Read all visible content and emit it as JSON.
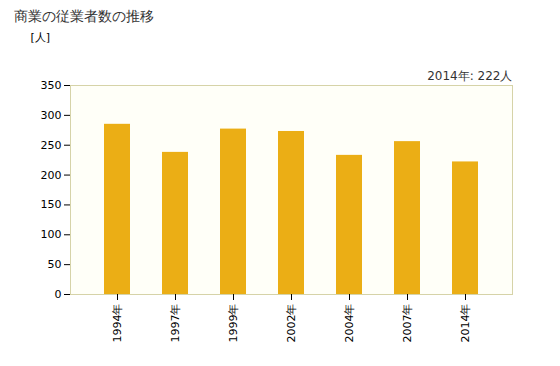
{
  "chart_data": {
    "type": "bar",
    "title": "商業の従業者数の推移",
    "y_label": "[人]",
    "annotation": "2014年: 222人",
    "categories": [
      "1994年",
      "1997年",
      "1999年",
      "2002年",
      "2004年",
      "2007年",
      "2014年"
    ],
    "values": [
      285,
      238,
      277,
      273,
      233,
      256,
      222
    ],
    "color": "#ebae15",
    "ylim": [
      0,
      350
    ],
    "yticks": [
      0,
      50,
      100,
      150,
      200,
      250,
      300,
      350
    ],
    "grid": false
  }
}
